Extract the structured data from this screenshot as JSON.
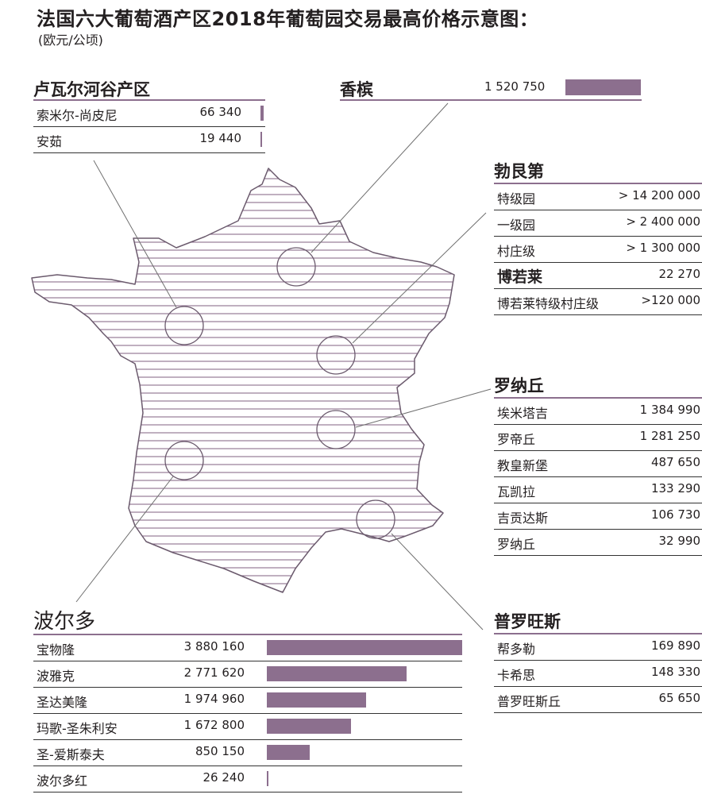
{
  "title": "法国六大葡萄酒产区2018年葡萄园交易最高价格示意图：",
  "subtitle": "(欧元/公顷)",
  "colors": {
    "bar": "#8c6f8e",
    "rule": "#8c6f8e",
    "map_stroke": "#6b5a6d",
    "line": "#777777"
  },
  "chart_data": {
    "type": "bar",
    "regions": {
      "loire": {
        "title": "卢瓦尔河谷产区",
        "rows": [
          {
            "name": "索米尔-尚皮尼",
            "value": 66340,
            "label": "66 340"
          },
          {
            "name": "安茹",
            "value": 19440,
            "label": "19 440"
          }
        ]
      },
      "champagne": {
        "title": "香槟",
        "rows": [
          {
            "name": "",
            "value": 1520750,
            "label": "1 520 750"
          }
        ]
      },
      "burgundy": {
        "title": "勃艮第",
        "rows": [
          {
            "name": "特级园",
            "label": "> 14 200 000"
          },
          {
            "name": "一级园",
            "label": "> 2 400 000"
          },
          {
            "name": "村庄级",
            "label": "> 1 300 000"
          },
          {
            "name": "博若莱",
            "value": 22270,
            "label": "22 270"
          },
          {
            "name": "博若莱特级村庄级",
            "label": ">120 000"
          }
        ]
      },
      "rhone": {
        "title": "罗纳丘",
        "rows": [
          {
            "name": "埃米塔吉",
            "value": 1384990,
            "label": "1 384 990"
          },
          {
            "name": "罗帝丘",
            "value": 1281250,
            "label": "1 281 250"
          },
          {
            "name": "教皇新堡",
            "value": 487650,
            "label": "487 650"
          },
          {
            "name": "瓦凯拉",
            "value": 133290,
            "label": "133 290"
          },
          {
            "name": "吉贡达斯",
            "value": 106730,
            "label": "106 730"
          },
          {
            "name": "罗纳丘",
            "value": 32990,
            "label": "32 990"
          }
        ]
      },
      "provence": {
        "title": "普罗旺斯",
        "rows": [
          {
            "name": "帮多勒",
            "value": 169890,
            "label": "169 890"
          },
          {
            "name": "卡希思",
            "value": 148330,
            "label": "148 330"
          },
          {
            "name": "普罗旺斯丘",
            "value": 65650,
            "label": "65 650"
          }
        ]
      },
      "bordeaux": {
        "title": "波尔多",
        "rows": [
          {
            "name": "宝物隆",
            "value": 3880160,
            "label": "3 880 160"
          },
          {
            "name": "波雅克",
            "value": 2771620,
            "label": "2 771 620"
          },
          {
            "name": "圣达美隆",
            "value": 1974960,
            "label": "1 974 960"
          },
          {
            "name": "玛歌-圣朱利安",
            "value": 1672800,
            "label": "1 672 800"
          },
          {
            "name": "圣-爱斯泰夫",
            "value": 850150,
            "label": "850 150"
          },
          {
            "name": "波尔多红",
            "value": 26240,
            "label": "26 240"
          }
        ]
      }
    }
  }
}
